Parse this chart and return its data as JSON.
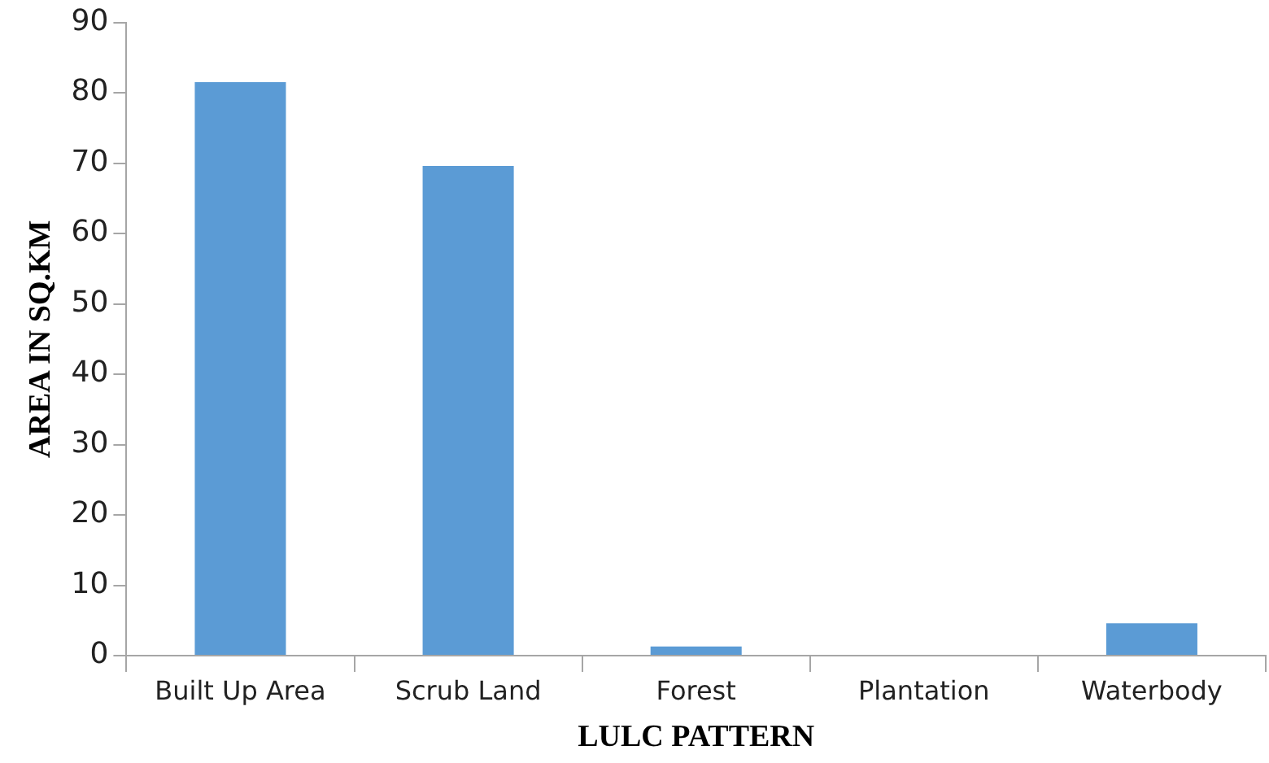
{
  "chart_data": {
    "type": "bar",
    "xlabel": "LULC PATTERN",
    "ylabel": "AREA IN SQ.KM",
    "categories": [
      "Built Up Area",
      "Scrub Land",
      "Forest",
      "Plantation",
      "Waterbody"
    ],
    "values": [
      81.5,
      69.6,
      1.3,
      0,
      4.6
    ],
    "color": "#5b9bd5",
    "ylim": [
      0,
      90
    ],
    "yticks": [
      0,
      10,
      20,
      30,
      40,
      50,
      60,
      70,
      80,
      90
    ],
    "grid": false,
    "legend": false
  }
}
